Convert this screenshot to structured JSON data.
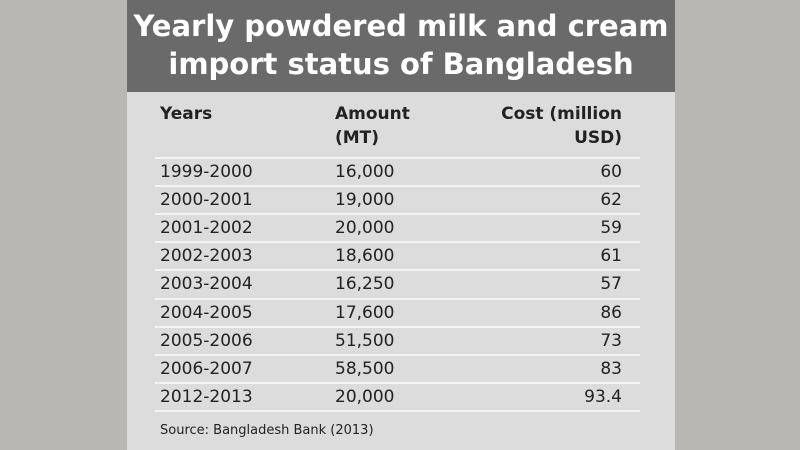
{
  "header": {
    "title": [
      "Yearly powdered milk and cream",
      "import status of Bangladesh"
    ]
  },
  "table": {
    "columns": [
      [
        "Years"
      ],
      [
        "Amount",
        "(MT)"
      ],
      [
        "Cost (million",
        "USD)"
      ]
    ],
    "rows": [
      [
        "1999-2000",
        "16,000",
        "60"
      ],
      [
        "2000-2001",
        "19,000",
        "62"
      ],
      [
        "2001-2002",
        "20,000",
        "59"
      ],
      [
        "2002-2003",
        "18,600",
        "61"
      ],
      [
        "2003-2004",
        "16,250",
        "57"
      ],
      [
        "2004-2005",
        "17,600",
        "86"
      ],
      [
        "2005-2006",
        "51,500",
        "73"
      ],
      [
        "2006-2007",
        "58,500",
        "83"
      ],
      [
        "2012-2013",
        "20,000",
        "93.4"
      ]
    ]
  },
  "source": "Source: Bangladesh Bank (2013)"
}
